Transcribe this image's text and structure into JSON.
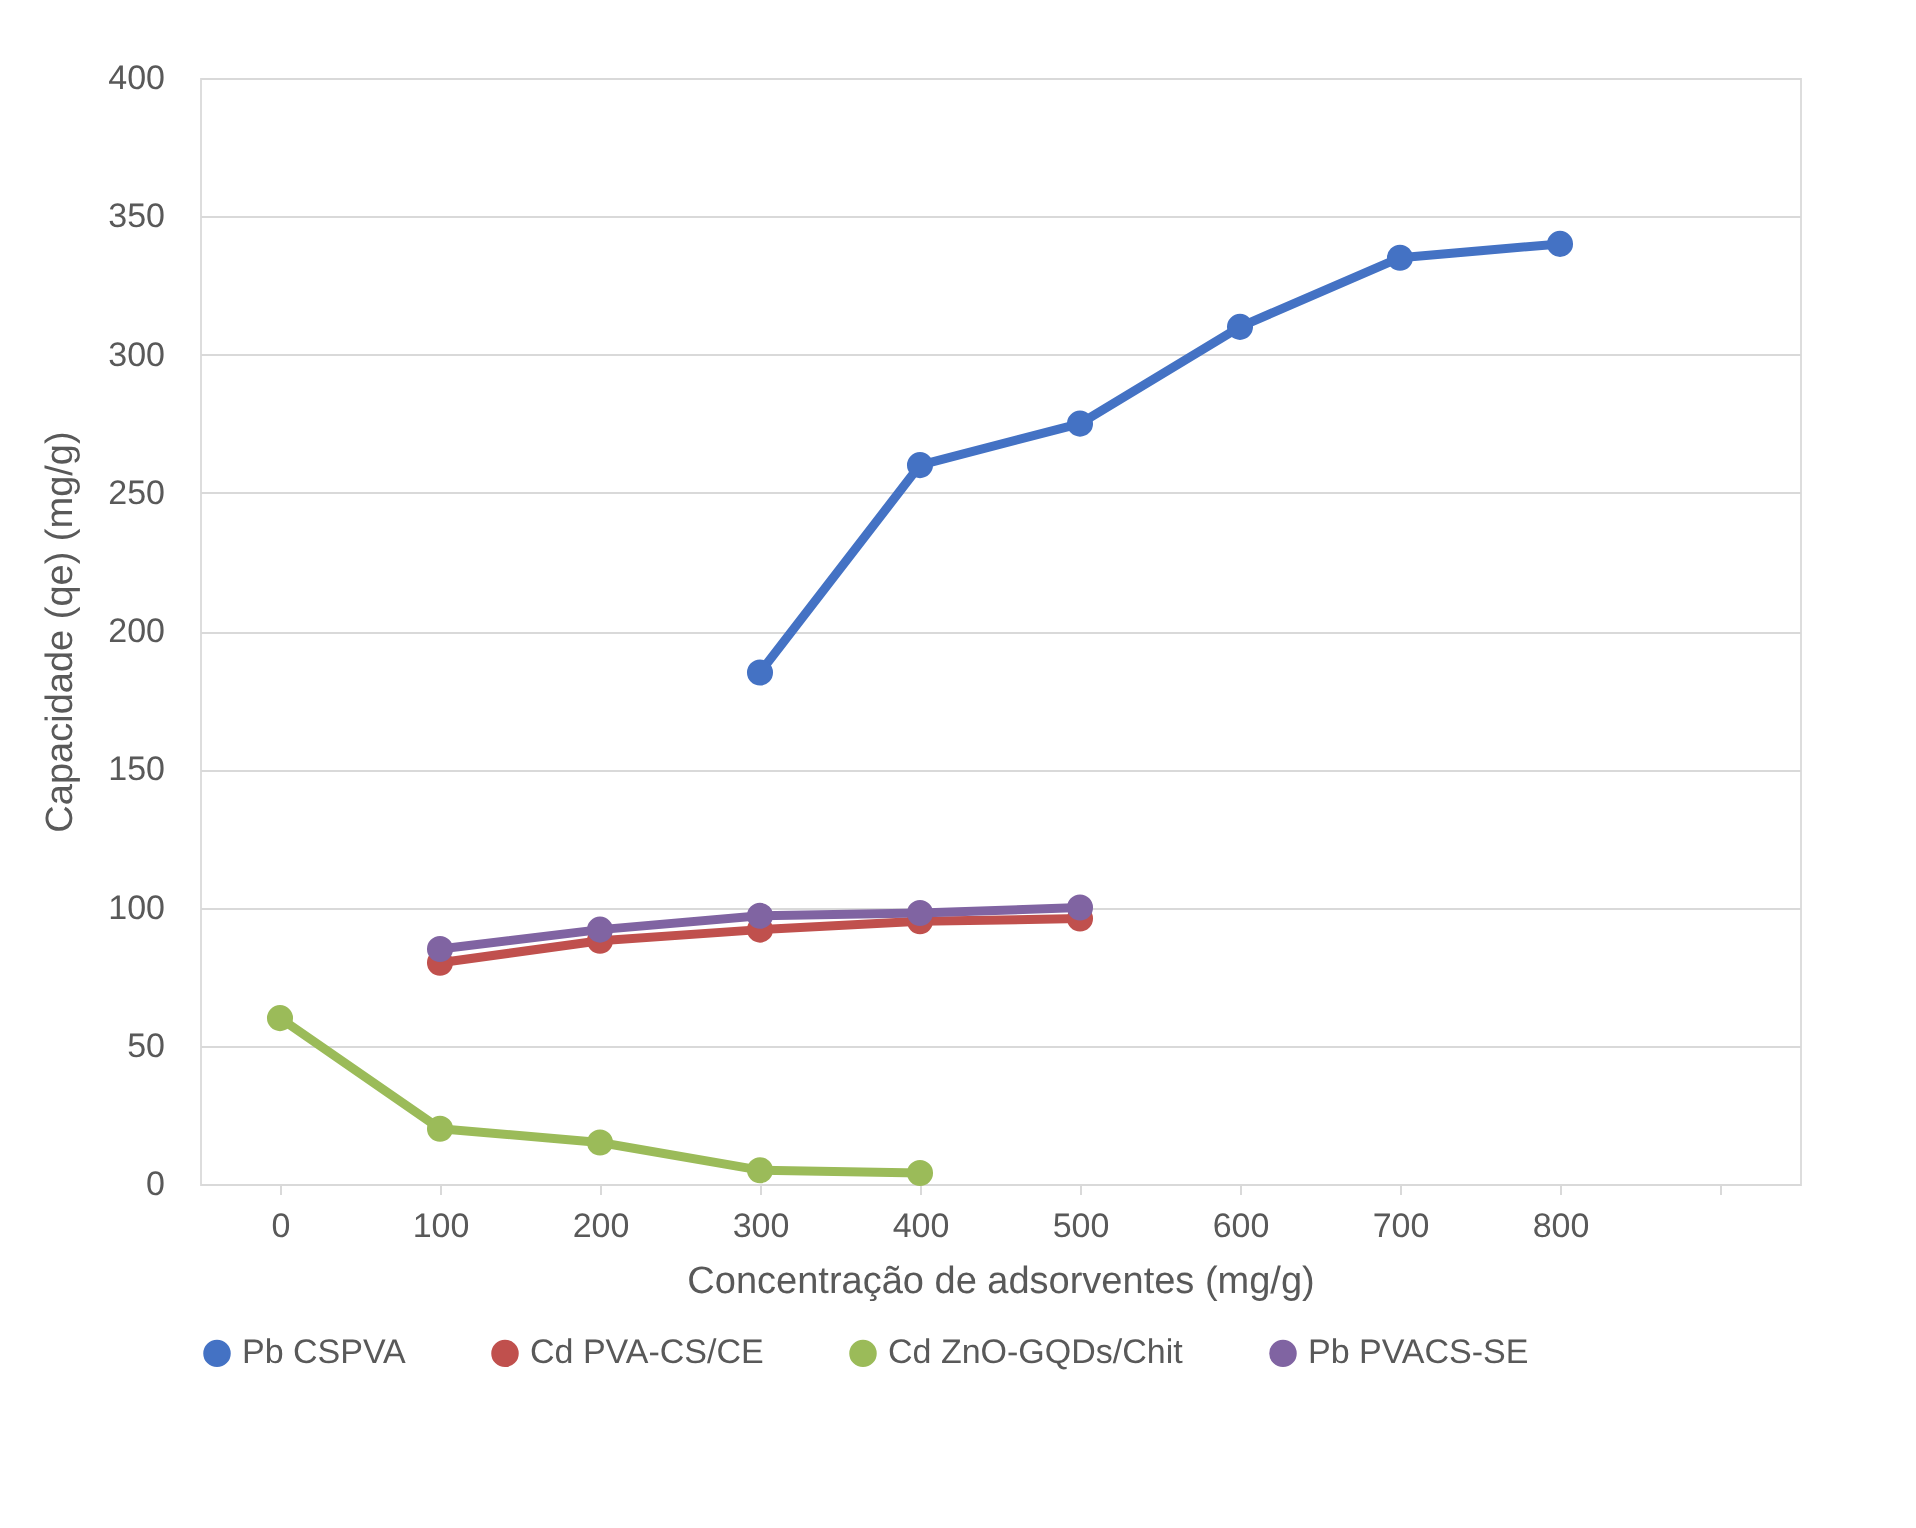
{
  "chart_data": {
    "type": "line",
    "xlabel": "Concentração de adsorventes (mg/g)",
    "ylabel": "Capacidade (qe) (mg/g)",
    "categories": [
      "0",
      "100",
      "200",
      "300",
      "400",
      "500",
      "600",
      "700",
      "800",
      null
    ],
    "ylim": [
      0,
      400
    ],
    "yticks": [
      0,
      50,
      100,
      150,
      200,
      250,
      300,
      350,
      400
    ],
    "grid": "y",
    "legend": "bottom",
    "marker": "circle",
    "line_style": "solid",
    "series": [
      {
        "name": "Pb CSPVA",
        "color": "#4472c4",
        "values": [
          null,
          null,
          null,
          185,
          260,
          275,
          310,
          335,
          340,
          null
        ]
      },
      {
        "name": "Cd PVA-CS/CE",
        "color": "#c0504d",
        "values": [
          null,
          80,
          88,
          92,
          95,
          96,
          null,
          null,
          null,
          null
        ]
      },
      {
        "name": "Cd ZnO-GQDs/Chit",
        "color": "#9bbb59",
        "values": [
          60,
          20,
          15,
          5,
          4,
          null,
          null,
          null,
          null,
          null
        ]
      },
      {
        "name": "Pb PVACS-SE",
        "color": "#8064a2",
        "values": [
          null,
          85,
          92,
          97,
          98,
          100,
          null,
          null,
          null,
          null
        ]
      }
    ]
  }
}
